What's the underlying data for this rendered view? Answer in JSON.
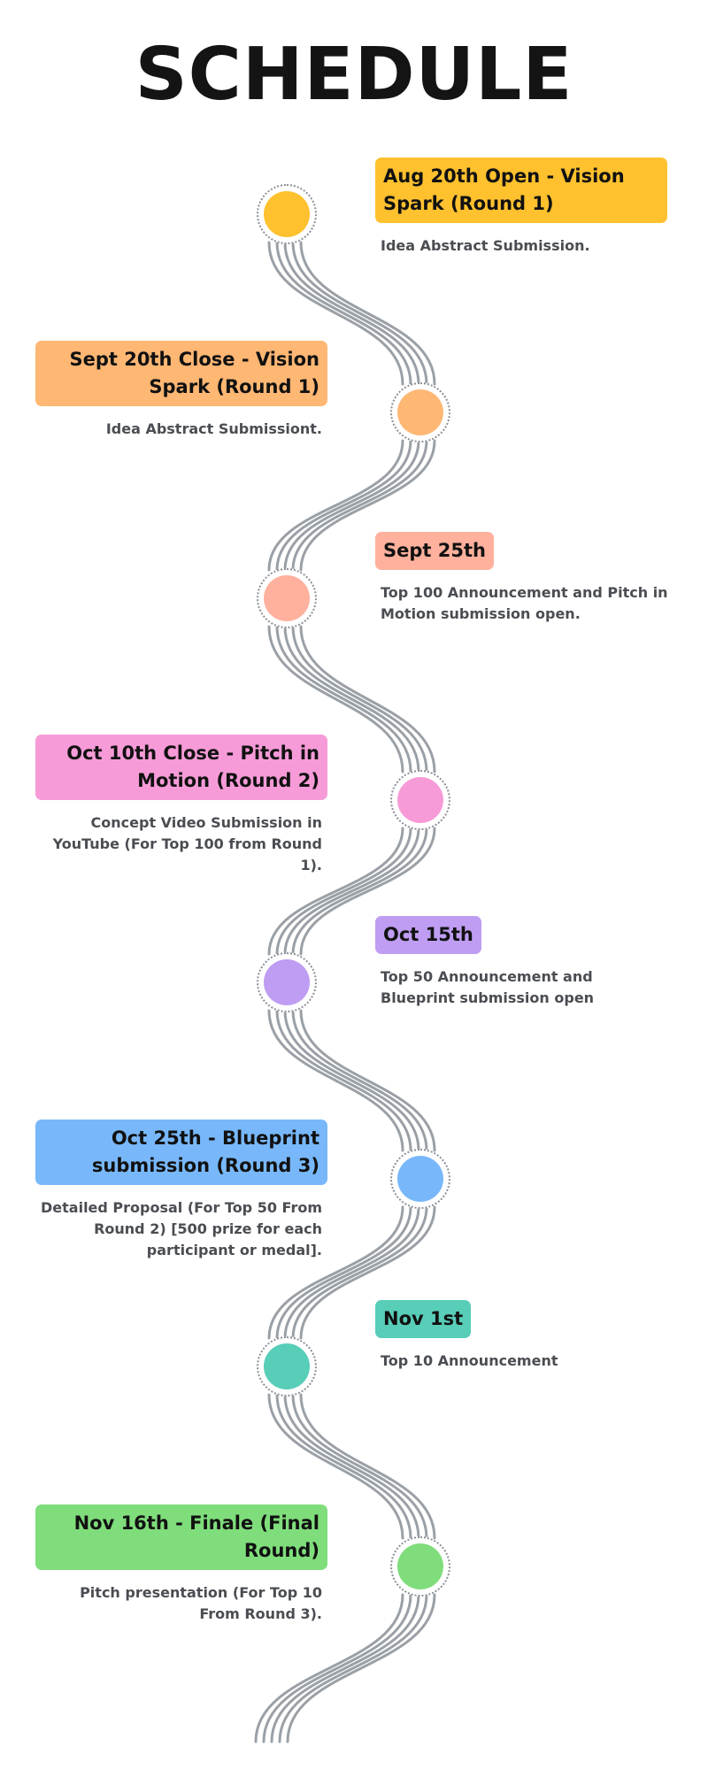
{
  "title": "SCHEDULE",
  "events": [
    {
      "label": "Aug 20th Open - Vision Spark (Round 1)",
      "description": "Idea Abstract Submission.",
      "color": "#FFC12E"
    },
    {
      "label": "Sept 20th Close - Vision Spark (Round 1)",
      "description": "Idea Abstract Submissiont.",
      "color": "#FFB774"
    },
    {
      "label": "Sept 25th",
      "description": " Top 100 Announcement and Pitch in Motion submission open.",
      "color": "#FFB19D"
    },
    {
      "label": "Oct 10th Close - Pitch in Motion (Round 2)",
      "description": "Concept Video Submission in YouTube (For Top 100 from Round 1).",
      "color": "#F79BD8"
    },
    {
      "label": "Oct 15th",
      "description": "Top 50 Announcement and Blueprint submission open",
      "color": "#BE9DF2"
    },
    {
      "label": "Oct 25th - Blueprint submission (Round 3)",
      "description": "Detailed Proposal (For Top 50 From Round 2) [500 prize for each participant or medal].",
      "color": "#78B8FA"
    },
    {
      "label": "Nov 1st",
      "description": " Top 10 Announcement",
      "color": "#58CDB8"
    },
    {
      "label": "Nov 16th - Finale (Final Round)",
      "description": "Pitch presentation (For Top 10 From Round 3).",
      "color": "#7FDD7B"
    }
  ]
}
